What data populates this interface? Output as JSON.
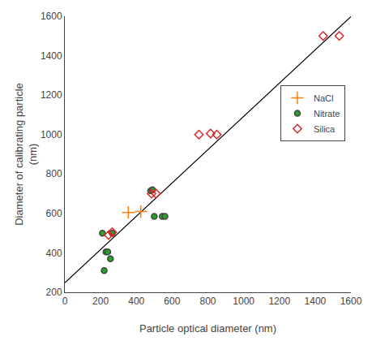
{
  "chart_data": {
    "type": "scatter",
    "xlabel": "Particle optical diameter (nm)",
    "ylabel": "Diameter of calibrating particle\n(nm)",
    "xlim": [
      0,
      1600
    ],
    "ylim": [
      200,
      1600
    ],
    "xticks": [
      0,
      200,
      400,
      600,
      800,
      1000,
      1200,
      1400,
      1600
    ],
    "yticks": [
      200,
      400,
      600,
      800,
      1000,
      1200,
      1400,
      1600
    ],
    "grid": false,
    "legend": "upper right",
    "series": [
      {
        "type": "line",
        "line_style": "solid",
        "color": "#000000",
        "x": [
          0,
          1600
        ],
        "y": [
          248,
          1598
        ]
      },
      {
        "name": "NaCl",
        "type": "scatter",
        "marker": "plus",
        "x": [
          355,
          425
        ],
        "y": [
          605,
          610
        ]
      },
      {
        "name": "Nitrate",
        "type": "scatter",
        "marker": "circle",
        "x": [
          210,
          220,
          230,
          240,
          255,
          265,
          480,
          490,
          500,
          545,
          560
        ],
        "y": [
          500,
          310,
          405,
          405,
          370,
          500,
          715,
          720,
          585,
          585,
          585
        ]
      },
      {
        "name": "Silica",
        "type": "scatter",
        "marker": "diamond_open",
        "x": [
          245,
          265,
          485,
          510,
          750,
          815,
          850,
          1445,
          1535
        ],
        "y": [
          490,
          505,
          700,
          700,
          1000,
          1005,
          1000,
          1500,
          1500
        ]
      }
    ]
  }
}
